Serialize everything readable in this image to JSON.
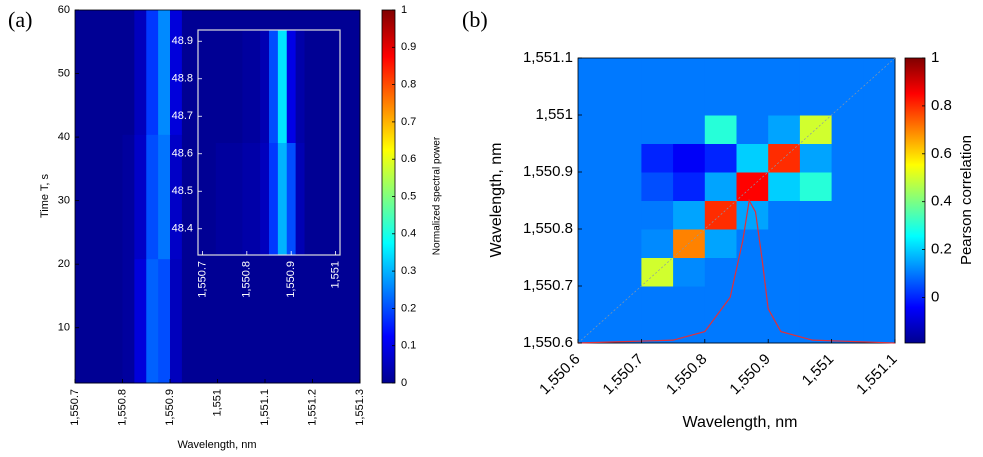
{
  "chart_data": [
    {
      "type": "heatmap",
      "panel_label": "(a)",
      "x_label": "Wavelength, nm",
      "y_label": "Time T, s",
      "colorbar_label": "Normalized spectral power",
      "xlim": [
        1550.7,
        1551.3
      ],
      "ylim": [
        1.3,
        60
      ],
      "zlim": [
        0,
        1
      ],
      "xticks": [
        {
          "value": 1550.7,
          "label": "1,550.7"
        },
        {
          "value": 1550.8,
          "label": "1,550.8"
        },
        {
          "value": 1550.9,
          "label": "1,550.9"
        },
        {
          "value": 1551,
          "label": "1,551"
        },
        {
          "value": 1551.1,
          "label": "1,551.1"
        },
        {
          "value": 1551.2,
          "label": "1,551.2"
        },
        {
          "value": 1551.3,
          "label": "1,551.3"
        }
      ],
      "yticks": [
        10,
        20,
        30,
        40,
        50,
        60
      ],
      "zticks": [
        0,
        0.1,
        0.2,
        0.3,
        0.4,
        0.5,
        0.6,
        0.7,
        0.8,
        0.9,
        1
      ],
      "z": [
        [
          0.02,
          0.02,
          0.02,
          0.02,
          0.03,
          0.09,
          0.22,
          0.2,
          0.06,
          0.02,
          0.02,
          0.02,
          0.02,
          0.02,
          0.02,
          0.02,
          0.02,
          0.02,
          0.02,
          0.02,
          0.02,
          0.02,
          0.02,
          0.02
        ],
        [
          0.02,
          0.02,
          0.02,
          0.02,
          0.03,
          0.07,
          0.2,
          0.24,
          0.07,
          0.02,
          0.02,
          0.02,
          0.02,
          0.02,
          0.02,
          0.02,
          0.02,
          0.02,
          0.02,
          0.02,
          0.02,
          0.02,
          0.02,
          0.02
        ],
        [
          0.02,
          0.02,
          0.02,
          0.02,
          0.02,
          0.06,
          0.18,
          0.26,
          0.09,
          0.02,
          0.02,
          0.02,
          0.02,
          0.02,
          0.02,
          0.02,
          0.02,
          0.02,
          0.02,
          0.02,
          0.02,
          0.02,
          0.02,
          0.02
        ]
      ]
    },
    {
      "type": "heatmap",
      "xlim": [
        1550.69,
        1551.01
      ],
      "ylim": [
        48.33,
        48.93
      ],
      "xticks": [
        {
          "value": 1550.7,
          "label": "1,550.7"
        },
        {
          "value": 1550.8,
          "label": "1,550.8"
        },
        {
          "value": 1550.9,
          "label": "1,550.9"
        },
        {
          "value": 1551,
          "label": "1,551"
        }
      ],
      "yticks": [
        48.4,
        48.5,
        48.6,
        48.7,
        48.8,
        48.9
      ],
      "zlim": [
        0,
        1
      ],
      "z": [
        [
          0.02,
          0.02,
          0.03,
          0.03,
          0.03,
          0.04,
          0.04,
          0.06,
          0.18,
          0.3,
          0.2,
          0.05,
          0.02,
          0.02,
          0.02,
          0.02
        ],
        [
          0.02,
          0.02,
          0.02,
          0.02,
          0.02,
          0.03,
          0.03,
          0.05,
          0.2,
          0.35,
          0.1,
          0.04,
          0.02,
          0.02,
          0.02,
          0.02
        ]
      ]
    },
    {
      "type": "heatmap",
      "panel_label": "(b)",
      "x_label": "Wavelength, nm",
      "y_label": "Wavelength, nm",
      "colorbar_label": "Pearson correlation",
      "xlim": [
        1550.6,
        1551.1
      ],
      "ylim": [
        1550.6,
        1551.1
      ],
      "zlim": [
        -0.19,
        1
      ],
      "xticks": [
        {
          "value": 1550.6,
          "label": "1,550.6"
        },
        {
          "value": 1550.7,
          "label": "1,550.7"
        },
        {
          "value": 1550.8,
          "label": "1,550.8"
        },
        {
          "value": 1550.9,
          "label": "1,550.9"
        },
        {
          "value": 1551,
          "label": "1,551"
        },
        {
          "value": 1551.1,
          "label": "1,551.1"
        }
      ],
      "yticks": [
        {
          "value": 1550.6,
          "label": "1,550.6"
        },
        {
          "value": 1550.7,
          "label": "1,550.7"
        },
        {
          "value": 1550.8,
          "label": "1,550.8"
        },
        {
          "value": 1550.9,
          "label": "1,550.9"
        },
        {
          "value": 1551,
          "label": "1,551"
        },
        {
          "value": 1551.1,
          "label": "1,551.1"
        }
      ],
      "zticks": [
        0,
        0.2,
        0.4,
        0.6,
        0.8,
        1
      ],
      "z": [
        [
          0.1,
          0.1,
          0.1,
          0.1,
          0.1,
          0.1,
          0.1,
          0.1,
          0.1,
          0.1
        ],
        [
          0.1,
          0.1,
          0.1,
          0.1,
          0.1,
          0.1,
          0.1,
          0.1,
          0.1,
          0.1
        ],
        [
          0.1,
          0.1,
          0.5,
          0.12,
          0.1,
          0.1,
          0.1,
          0.1,
          0.1,
          0.1
        ],
        [
          0.1,
          0.1,
          0.12,
          0.7,
          0.15,
          0.1,
          0.1,
          0.1,
          0.1,
          0.1
        ],
        [
          0.1,
          0.1,
          0.1,
          0.15,
          0.8,
          0.15,
          0.1,
          0.1,
          0.1,
          0.1
        ],
        [
          0.1,
          0.1,
          0.05,
          0.0,
          0.15,
          0.85,
          0.2,
          0.3,
          0.1,
          0.1
        ],
        [
          0.1,
          0.1,
          0.0,
          -0.05,
          0.0,
          0.2,
          0.8,
          0.15,
          0.1,
          0.1
        ],
        [
          0.1,
          0.1,
          0.1,
          0.1,
          0.3,
          0.1,
          0.15,
          0.5,
          0.1,
          0.1
        ],
        [
          0.1,
          0.1,
          0.1,
          0.1,
          0.1,
          0.1,
          0.1,
          0.1,
          0.1,
          0.1
        ],
        [
          0.1,
          0.1,
          0.1,
          0.1,
          0.1,
          0.1,
          0.1,
          0.1,
          0.1,
          0.1
        ]
      ],
      "series": [
        {
          "color": "#e0303a",
          "x": [
            1550.6,
            1550.75,
            1550.8,
            1550.84,
            1550.86,
            1550.87,
            1550.88,
            1550.89,
            1550.9,
            1550.92,
            1550.97,
            1551.1
          ],
          "values": [
            1550.6,
            1550.605,
            1550.62,
            1550.68,
            1550.78,
            1550.85,
            1550.83,
            1550.75,
            1550.66,
            1550.62,
            1550.605,
            1550.6
          ]
        }
      ]
    }
  ]
}
